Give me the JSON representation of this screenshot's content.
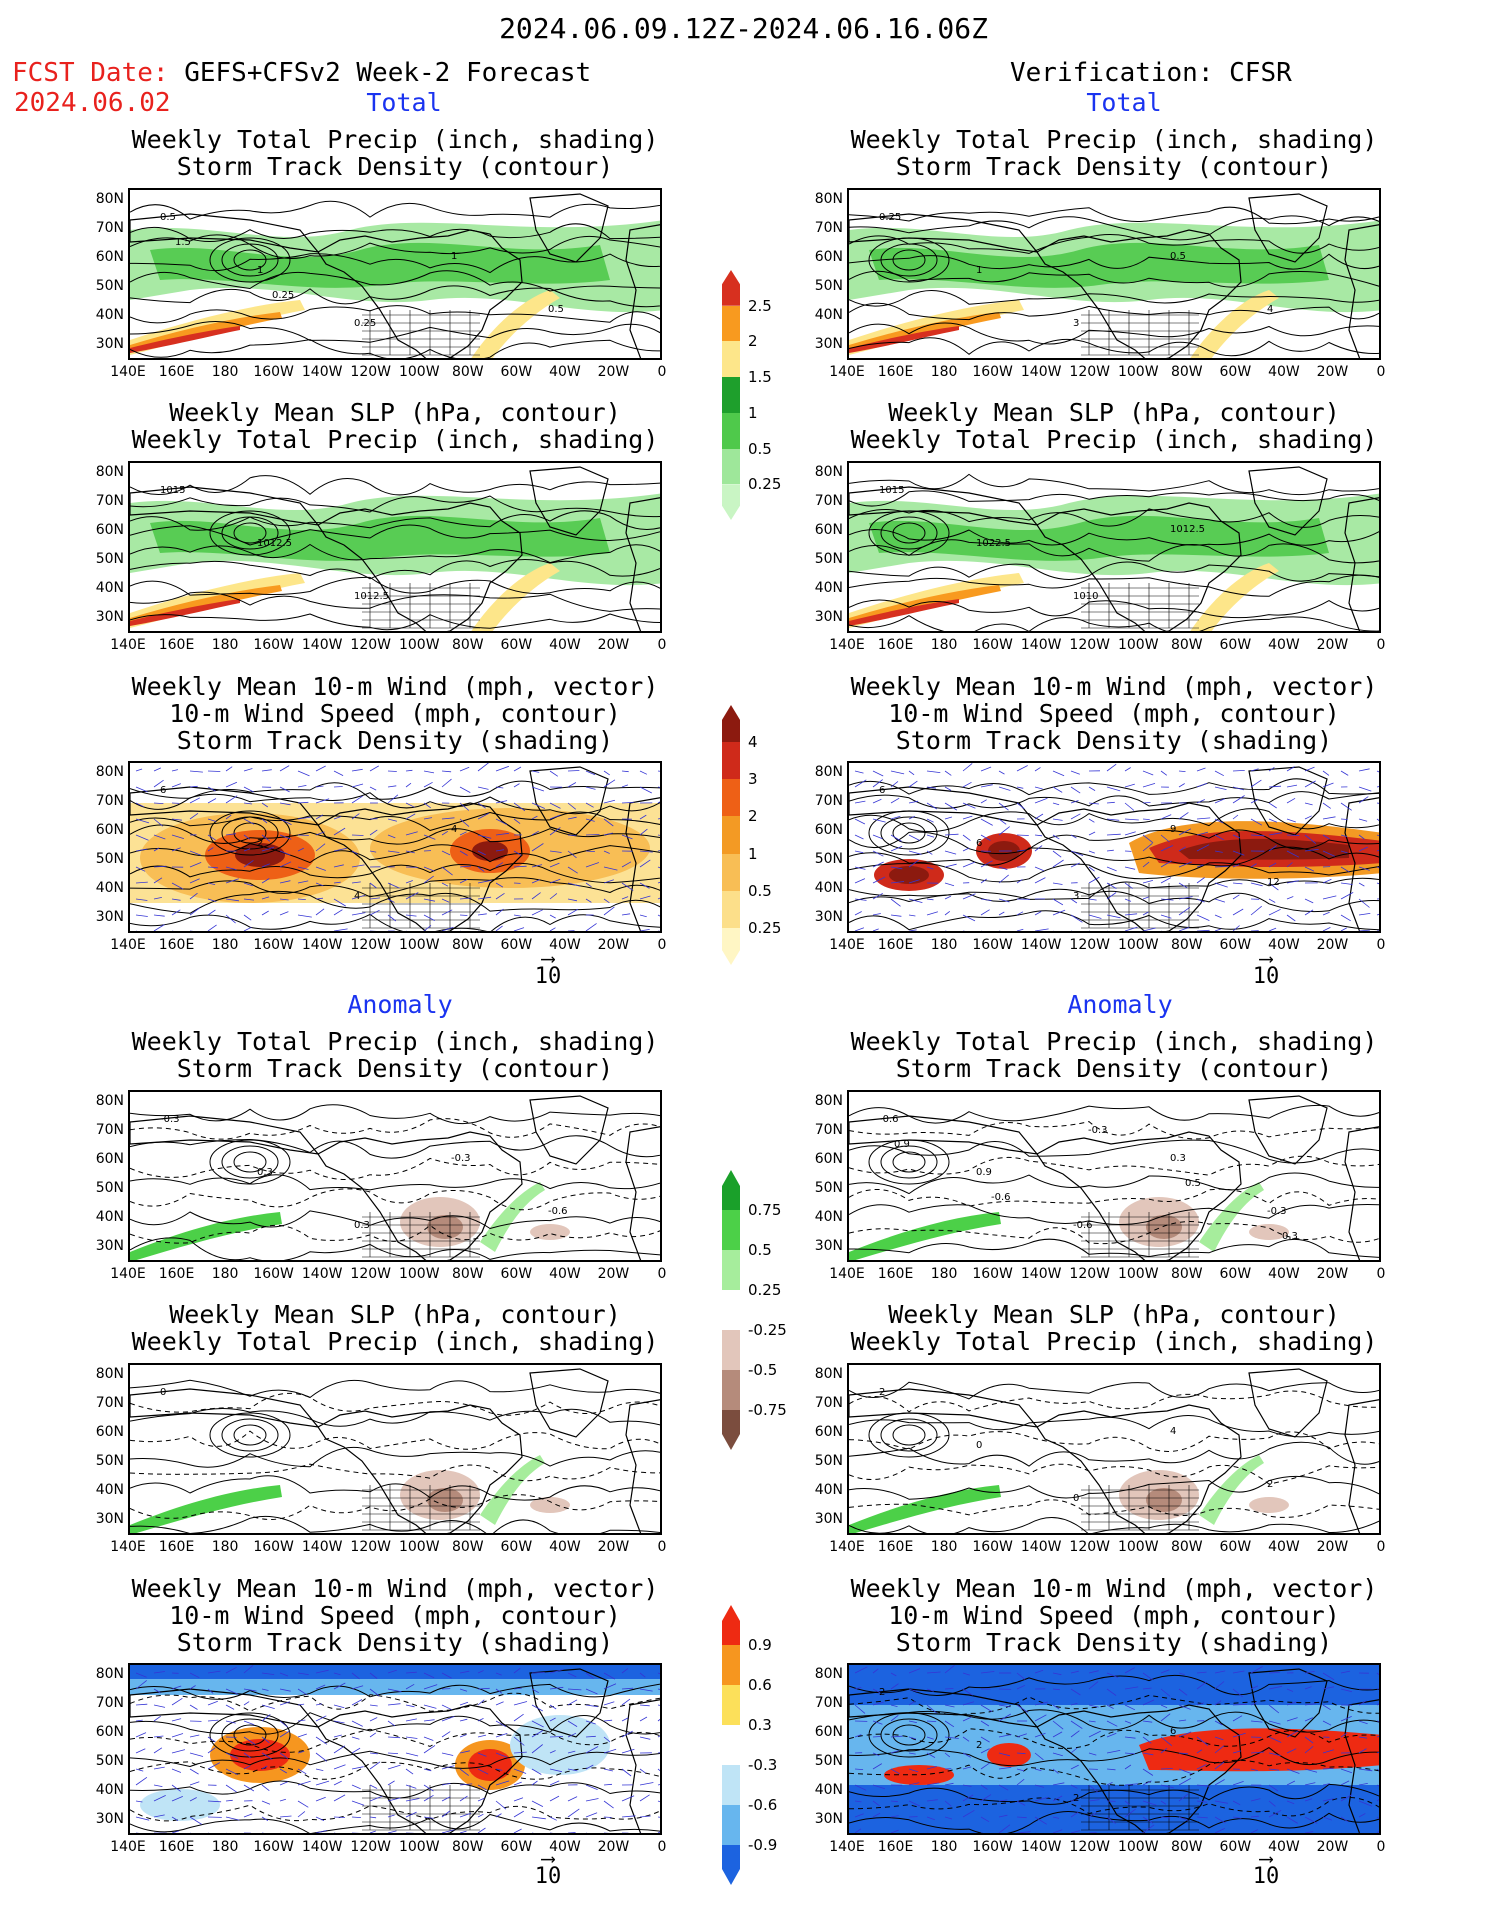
{
  "header": {
    "period": "2024.06.09.12Z-2024.06.16.06Z",
    "fcst_label": "FCST Date:",
    "fcst_model": "GEFS+CFSv2 Week-2 Forecast",
    "fcst_date": "2024.06.02",
    "verification": "Verification: CFSR"
  },
  "sections": {
    "total": "Total",
    "anomaly": "Anomaly"
  },
  "panel_titles": {
    "precip_storm": "Weekly Total Precip (inch, shading)\nStorm Track Density (contour)",
    "slp_precip": "Weekly Mean SLP (hPa, contour)\nWeekly Total Precip (inch, shading)",
    "wind_storm": "Weekly Mean 10-m Wind (mph, vector)\n10-m Wind Speed (mph, contour)\nStorm Track Density (shading)"
  },
  "axes": {
    "lat_labels": [
      "80N",
      "70N",
      "60N",
      "50N",
      "40N",
      "30N"
    ],
    "lon_labels": [
      "140E",
      "160E",
      "180",
      "160W",
      "140W",
      "120W",
      "100W",
      "80W",
      "60W",
      "40W",
      "20W",
      "0"
    ]
  },
  "vector_ref": "10",
  "colorbars": {
    "precip_total": {
      "labels": [
        "2.5",
        "2",
        "1.5",
        "1",
        "0.5",
        "0.25"
      ],
      "colors": [
        "#d7301f",
        "#f89a1f",
        "#fde68a",
        "#1e9f2c",
        "#4fc94b",
        "#9ee79a",
        "#c9f5c4"
      ]
    },
    "storm_total": {
      "labels": [
        "4",
        "3",
        "2",
        "1",
        "0.5",
        "0.25"
      ],
      "colors": [
        "#8c1a0f",
        "#cf2a1a",
        "#ee6016",
        "#f39a24",
        "#f8be55",
        "#fcdf8a",
        "#fff6c4"
      ]
    },
    "precip_anom": {
      "labels": [
        "0.75",
        "0.5",
        "0.25",
        "-0.25",
        "-0.5",
        "-0.75"
      ],
      "colors": [
        "#1aa02a",
        "#4cd048",
        "#a6ed9c",
        "#ffffff",
        "#e2c6bb",
        "#b58b7b",
        "#7b4d3e"
      ]
    },
    "storm_anom": {
      "labels": [
        "0.9",
        "0.6",
        "0.3",
        "-0.3",
        "-0.6",
        "-0.9"
      ],
      "colors": [
        "#ee2a12",
        "#f6961f",
        "#fce05a",
        "#ffffff",
        "#bfe4f6",
        "#67b6ee",
        "#1c63e0"
      ]
    }
  },
  "contour_labels": {
    "l1": [
      "0.5",
      "1",
      "0.25",
      "1",
      "0.5",
      "1.5",
      "0.25"
    ],
    "r1": [
      "0.25",
      "1",
      "3",
      "0.5",
      "4"
    ],
    "l2": [
      "1015",
      "1012.5",
      "1012.5"
    ],
    "r2": [
      "1015",
      "1022.5",
      "1010",
      "1012.5"
    ],
    "l3": [
      "6",
      "2",
      "4",
      "4"
    ],
    "r3": [
      "6",
      "6",
      "3",
      "9",
      "12"
    ],
    "l4": [
      "-0.3",
      "0.3",
      "0.3",
      "-0.3",
      "-0.6"
    ],
    "r4": [
      "-0.6",
      "0.9",
      "-0.6",
      "0.3",
      "-0.3",
      "0.9",
      "-0.6",
      "-0.3",
      "0.5",
      "0.3"
    ],
    "l5": [
      "0"
    ],
    "r5": [
      "2",
      "0",
      "0",
      "4",
      "2"
    ],
    "l6": [],
    "r6": [
      "2",
      "2",
      "2",
      "6"
    ]
  }
}
